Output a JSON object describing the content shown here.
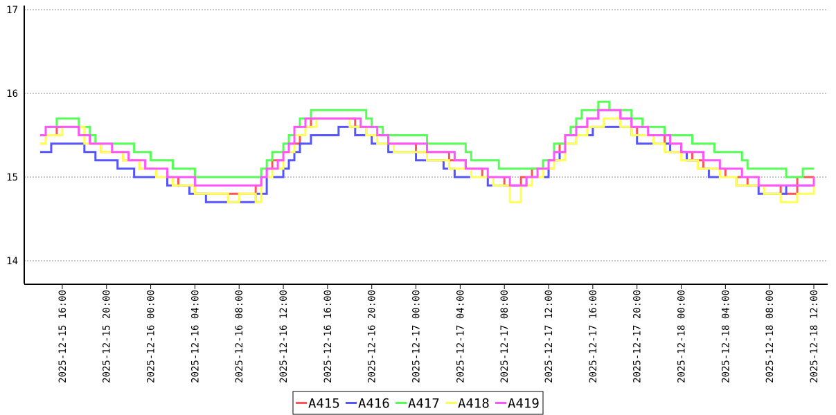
{
  "chart_data": {
    "type": "line",
    "title": "",
    "xlabel": "",
    "ylabel": "",
    "x_range": [
      "2025-12-15 14:00",
      "2025-12-18 12:00"
    ],
    "ylim": [
      13.7,
      17
    ],
    "y_ticks": [
      "14",
      "15",
      "16",
      "17"
    ],
    "x_ticks": [
      "2025-12-15 16:00",
      "2025-12-15 20:00",
      "2025-12-16 00:00",
      "2025-12-16 04:00",
      "2025-12-16 08:00",
      "2025-12-16 12:00",
      "2025-12-16 16:00",
      "2025-12-16 20:00",
      "2025-12-17 00:00",
      "2025-12-17 04:00",
      "2025-12-17 08:00",
      "2025-12-17 12:00",
      "2025-12-17 16:00",
      "2025-12-17 20:00",
      "2025-12-18 00:00",
      "2025-12-18 04:00",
      "2025-12-18 08:00",
      "2025-12-18 12:00"
    ],
    "grid": "horizontal dotted",
    "legend_position": "bottom-center",
    "step": true,
    "series": [
      {
        "name": "A415",
        "color": "#ff5555",
        "points": [
          [
            "2025-12-15 14:00",
            15.4
          ],
          [
            "2025-12-15 14:30",
            15.5
          ],
          [
            "2025-12-15 15:30",
            15.6
          ],
          [
            "2025-12-15 17:30",
            15.5
          ],
          [
            "2025-12-15 18:30",
            15.4
          ],
          [
            "2025-12-15 19:30",
            15.3
          ],
          [
            "2025-12-15 21:30",
            15.2
          ],
          [
            "2025-12-15 23:00",
            15.1
          ],
          [
            "2025-12-16 00:30",
            15.0
          ],
          [
            "2025-12-16 02:30",
            14.9
          ],
          [
            "2025-12-16 04:00",
            14.8
          ],
          [
            "2025-12-16 09:30",
            14.9
          ],
          [
            "2025-12-16 10:00",
            15.0
          ],
          [
            "2025-12-16 10:30",
            15.1
          ],
          [
            "2025-12-16 11:00",
            15.2
          ],
          [
            "2025-12-16 12:00",
            15.3
          ],
          [
            "2025-12-16 12:30",
            15.4
          ],
          [
            "2025-12-16 13:30",
            15.5
          ],
          [
            "2025-12-16 14:00",
            15.6
          ],
          [
            "2025-12-16 14:30",
            15.7
          ],
          [
            "2025-12-16 18:30",
            15.6
          ],
          [
            "2025-12-16 19:30",
            15.5
          ],
          [
            "2025-12-16 21:30",
            15.4
          ],
          [
            "2025-12-17 00:00",
            15.3
          ],
          [
            "2025-12-17 03:00",
            15.2
          ],
          [
            "2025-12-17 04:30",
            15.1
          ],
          [
            "2025-12-17 06:00",
            15.0
          ],
          [
            "2025-12-17 08:00",
            14.9
          ],
          [
            "2025-12-17 09:30",
            15.0
          ],
          [
            "2025-12-17 10:30",
            15.1
          ],
          [
            "2025-12-17 12:00",
            15.2
          ],
          [
            "2025-12-17 12:30",
            15.3
          ],
          [
            "2025-12-17 13:00",
            15.4
          ],
          [
            "2025-12-17 13:30",
            15.5
          ],
          [
            "2025-12-17 14:00",
            15.6
          ],
          [
            "2025-12-17 15:30",
            15.7
          ],
          [
            "2025-12-17 16:30",
            15.8
          ],
          [
            "2025-12-17 18:30",
            15.7
          ],
          [
            "2025-12-17 19:30",
            15.6
          ],
          [
            "2025-12-17 20:00",
            15.5
          ],
          [
            "2025-12-17 22:30",
            15.4
          ],
          [
            "2025-12-18 00:00",
            15.3
          ],
          [
            "2025-12-18 01:00",
            15.2
          ],
          [
            "2025-12-18 02:00",
            15.1
          ],
          [
            "2025-12-18 04:00",
            15.0
          ],
          [
            "2025-12-18 06:00",
            14.9
          ],
          [
            "2025-12-18 09:00",
            14.8
          ],
          [
            "2025-12-18 10:30",
            15.0
          ],
          [
            "2025-12-18 12:00",
            15.0
          ]
        ]
      },
      {
        "name": "A416",
        "color": "#5555ff",
        "points": [
          [
            "2025-12-15 14:00",
            15.3
          ],
          [
            "2025-12-15 15:00",
            15.4
          ],
          [
            "2025-12-15 18:00",
            15.3
          ],
          [
            "2025-12-15 19:00",
            15.2
          ],
          [
            "2025-12-15 21:00",
            15.1
          ],
          [
            "2025-12-15 22:30",
            15.0
          ],
          [
            "2025-12-16 01:30",
            14.9
          ],
          [
            "2025-12-16 03:30",
            14.8
          ],
          [
            "2025-12-16 05:00",
            14.7
          ],
          [
            "2025-12-16 09:30",
            14.8
          ],
          [
            "2025-12-16 10:30",
            15.0
          ],
          [
            "2025-12-16 12:00",
            15.1
          ],
          [
            "2025-12-16 12:30",
            15.2
          ],
          [
            "2025-12-16 13:00",
            15.3
          ],
          [
            "2025-12-16 13:30",
            15.4
          ],
          [
            "2025-12-16 14:30",
            15.5
          ],
          [
            "2025-12-16 17:00",
            15.6
          ],
          [
            "2025-12-16 18:30",
            15.5
          ],
          [
            "2025-12-16 20:00",
            15.4
          ],
          [
            "2025-12-16 21:30",
            15.3
          ],
          [
            "2025-12-17 00:00",
            15.2
          ],
          [
            "2025-12-17 02:30",
            15.1
          ],
          [
            "2025-12-17 03:30",
            15.0
          ],
          [
            "2025-12-17 06:30",
            14.9
          ],
          [
            "2025-12-17 10:00",
            15.0
          ],
          [
            "2025-12-17 12:00",
            15.1
          ],
          [
            "2025-12-17 12:30",
            15.2
          ],
          [
            "2025-12-17 13:00",
            15.3
          ],
          [
            "2025-12-17 13:30",
            15.4
          ],
          [
            "2025-12-17 14:30",
            15.5
          ],
          [
            "2025-12-17 16:00",
            15.6
          ],
          [
            "2025-12-17 19:30",
            15.5
          ],
          [
            "2025-12-17 20:00",
            15.4
          ],
          [
            "2025-12-17 23:00",
            15.3
          ],
          [
            "2025-12-18 00:30",
            15.2
          ],
          [
            "2025-12-18 01:30",
            15.1
          ],
          [
            "2025-12-18 02:30",
            15.0
          ],
          [
            "2025-12-18 05:00",
            14.9
          ],
          [
            "2025-12-18 07:00",
            14.8
          ],
          [
            "2025-12-18 09:30",
            14.9
          ],
          [
            "2025-12-18 12:00",
            14.9
          ]
        ]
      },
      {
        "name": "A417",
        "color": "#55ff55",
        "points": [
          [
            "2025-12-15 14:00",
            15.5
          ],
          [
            "2025-12-15 14:30",
            15.6
          ],
          [
            "2025-12-15 15:30",
            15.7
          ],
          [
            "2025-12-15 17:30",
            15.6
          ],
          [
            "2025-12-15 18:30",
            15.5
          ],
          [
            "2025-12-15 19:00",
            15.4
          ],
          [
            "2025-12-15 22:30",
            15.3
          ],
          [
            "2025-12-16 00:00",
            15.2
          ],
          [
            "2025-12-16 01:00",
            15.2
          ],
          [
            "2025-12-16 02:00",
            15.1
          ],
          [
            "2025-12-16 04:00",
            15.0
          ],
          [
            "2025-12-16 09:30",
            15.0
          ],
          [
            "2025-12-16 10:00",
            15.1
          ],
          [
            "2025-12-16 10:30",
            15.2
          ],
          [
            "2025-12-16 11:00",
            15.3
          ],
          [
            "2025-12-16 12:00",
            15.4
          ],
          [
            "2025-12-16 12:30",
            15.5
          ],
          [
            "2025-12-16 13:00",
            15.6
          ],
          [
            "2025-12-16 13:30",
            15.7
          ],
          [
            "2025-12-16 14:30",
            15.8
          ],
          [
            "2025-12-16 19:30",
            15.7
          ],
          [
            "2025-12-16 20:00",
            15.6
          ],
          [
            "2025-12-16 21:00",
            15.5
          ],
          [
            "2025-12-17 01:00",
            15.4
          ],
          [
            "2025-12-17 04:30",
            15.3
          ],
          [
            "2025-12-17 05:00",
            15.2
          ],
          [
            "2025-12-17 07:30",
            15.1
          ],
          [
            "2025-12-17 10:30",
            15.1
          ],
          [
            "2025-12-17 11:30",
            15.2
          ],
          [
            "2025-12-17 12:30",
            15.4
          ],
          [
            "2025-12-17 13:30",
            15.5
          ],
          [
            "2025-12-17 14:00",
            15.6
          ],
          [
            "2025-12-17 14:30",
            15.7
          ],
          [
            "2025-12-17 15:00",
            15.8
          ],
          [
            "2025-12-17 16:30",
            15.9
          ],
          [
            "2025-12-17 17:30",
            15.8
          ],
          [
            "2025-12-17 19:30",
            15.7
          ],
          [
            "2025-12-17 20:30",
            15.6
          ],
          [
            "2025-12-17 22:30",
            15.5
          ],
          [
            "2025-12-18 01:00",
            15.4
          ],
          [
            "2025-12-18 02:00",
            15.4
          ],
          [
            "2025-12-18 03:00",
            15.3
          ],
          [
            "2025-12-18 05:30",
            15.2
          ],
          [
            "2025-12-18 06:00",
            15.1
          ],
          [
            "2025-12-18 09:30",
            15.0
          ],
          [
            "2025-12-18 11:00",
            15.1
          ],
          [
            "2025-12-18 12:00",
            15.1
          ]
        ]
      },
      {
        "name": "A418",
        "color": "#ffff55",
        "points": [
          [
            "2025-12-15 14:00",
            15.4
          ],
          [
            "2025-12-15 14:30",
            15.5
          ],
          [
            "2025-12-15 16:00",
            15.6
          ],
          [
            "2025-12-15 18:00",
            15.4
          ],
          [
            "2025-12-15 19:30",
            15.3
          ],
          [
            "2025-12-15 21:30",
            15.2
          ],
          [
            "2025-12-15 23:00",
            15.1
          ],
          [
            "2025-12-16 00:30",
            15.0
          ],
          [
            "2025-12-16 02:00",
            14.9
          ],
          [
            "2025-12-16 04:00",
            14.8
          ],
          [
            "2025-12-16 07:00",
            14.7
          ],
          [
            "2025-12-16 08:00",
            14.8
          ],
          [
            "2025-12-16 09:30",
            14.7
          ],
          [
            "2025-12-16 10:00",
            15.0
          ],
          [
            "2025-12-16 11:00",
            15.1
          ],
          [
            "2025-12-16 12:00",
            15.3
          ],
          [
            "2025-12-16 13:00",
            15.5
          ],
          [
            "2025-12-16 14:00",
            15.6
          ],
          [
            "2025-12-16 15:00",
            15.7
          ],
          [
            "2025-12-16 18:00",
            15.6
          ],
          [
            "2025-12-16 19:30",
            15.5
          ],
          [
            "2025-12-16 20:30",
            15.4
          ],
          [
            "2025-12-16 22:00",
            15.3
          ],
          [
            "2025-12-17 01:00",
            15.2
          ],
          [
            "2025-12-17 03:00",
            15.1
          ],
          [
            "2025-12-17 05:00",
            15.0
          ],
          [
            "2025-12-17 07:00",
            14.9
          ],
          [
            "2025-12-17 08:30",
            14.7
          ],
          [
            "2025-12-17 09:30",
            14.9
          ],
          [
            "2025-12-17 10:30",
            15.0
          ],
          [
            "2025-12-17 11:30",
            15.1
          ],
          [
            "2025-12-17 12:30",
            15.2
          ],
          [
            "2025-12-17 13:30",
            15.4
          ],
          [
            "2025-12-17 14:30",
            15.5
          ],
          [
            "2025-12-17 15:30",
            15.6
          ],
          [
            "2025-12-17 17:00",
            15.7
          ],
          [
            "2025-12-17 18:30",
            15.6
          ],
          [
            "2025-12-17 19:30",
            15.5
          ],
          [
            "2025-12-17 21:30",
            15.4
          ],
          [
            "2025-12-17 22:30",
            15.3
          ],
          [
            "2025-12-18 00:00",
            15.2
          ],
          [
            "2025-12-18 01:30",
            15.1
          ],
          [
            "2025-12-18 03:30",
            15.0
          ],
          [
            "2025-12-18 05:00",
            14.9
          ],
          [
            "2025-12-18 07:30",
            14.8
          ],
          [
            "2025-12-18 09:00",
            14.7
          ],
          [
            "2025-12-18 10:30",
            14.8
          ],
          [
            "2025-12-18 12:00",
            14.9
          ]
        ]
      },
      {
        "name": "A419",
        "color": "#ff55ff",
        "points": [
          [
            "2025-12-15 14:00",
            15.5
          ],
          [
            "2025-12-15 14:30",
            15.6
          ],
          [
            "2025-12-15 15:30",
            15.6
          ],
          [
            "2025-12-15 17:30",
            15.5
          ],
          [
            "2025-12-15 18:30",
            15.4
          ],
          [
            "2025-12-15 20:30",
            15.3
          ],
          [
            "2025-12-15 22:00",
            15.2
          ],
          [
            "2025-12-15 23:30",
            15.1
          ],
          [
            "2025-12-16 01:30",
            15.0
          ],
          [
            "2025-12-16 04:00",
            14.9
          ],
          [
            "2025-12-16 09:30",
            14.9
          ],
          [
            "2025-12-16 10:00",
            15.0
          ],
          [
            "2025-12-16 10:30",
            15.1
          ],
          [
            "2025-12-16 11:30",
            15.2
          ],
          [
            "2025-12-16 12:00",
            15.3
          ],
          [
            "2025-12-16 12:30",
            15.4
          ],
          [
            "2025-12-16 13:00",
            15.6
          ],
          [
            "2025-12-16 14:00",
            15.7
          ],
          [
            "2025-12-16 17:30",
            15.7
          ],
          [
            "2025-12-16 19:00",
            15.6
          ],
          [
            "2025-12-16 20:30",
            15.5
          ],
          [
            "2025-12-16 21:30",
            15.4
          ],
          [
            "2025-12-17 01:00",
            15.3
          ],
          [
            "2025-12-17 03:30",
            15.2
          ],
          [
            "2025-12-17 04:30",
            15.1
          ],
          [
            "2025-12-17 06:30",
            15.0
          ],
          [
            "2025-12-17 08:30",
            14.9
          ],
          [
            "2025-12-17 10:00",
            15.0
          ],
          [
            "2025-12-17 11:00",
            15.1
          ],
          [
            "2025-12-17 12:00",
            15.2
          ],
          [
            "2025-12-17 12:30",
            15.3
          ],
          [
            "2025-12-17 13:30",
            15.5
          ],
          [
            "2025-12-17 14:30",
            15.6
          ],
          [
            "2025-12-17 15:30",
            15.7
          ],
          [
            "2025-12-17 16:30",
            15.8
          ],
          [
            "2025-12-17 18:30",
            15.7
          ],
          [
            "2025-12-17 19:30",
            15.6
          ],
          [
            "2025-12-17 21:00",
            15.5
          ],
          [
            "2025-12-17 23:00",
            15.4
          ],
          [
            "2025-12-18 00:00",
            15.3
          ],
          [
            "2025-12-18 02:00",
            15.2
          ],
          [
            "2025-12-18 03:30",
            15.1
          ],
          [
            "2025-12-18 05:30",
            15.0
          ],
          [
            "2025-12-18 06:30",
            15.0
          ],
          [
            "2025-12-18 07:00",
            14.9
          ],
          [
            "2025-12-18 09:00",
            14.9
          ],
          [
            "2025-12-18 10:00",
            14.9
          ],
          [
            "2025-12-18 12:00",
            15.0
          ]
        ]
      }
    ]
  }
}
